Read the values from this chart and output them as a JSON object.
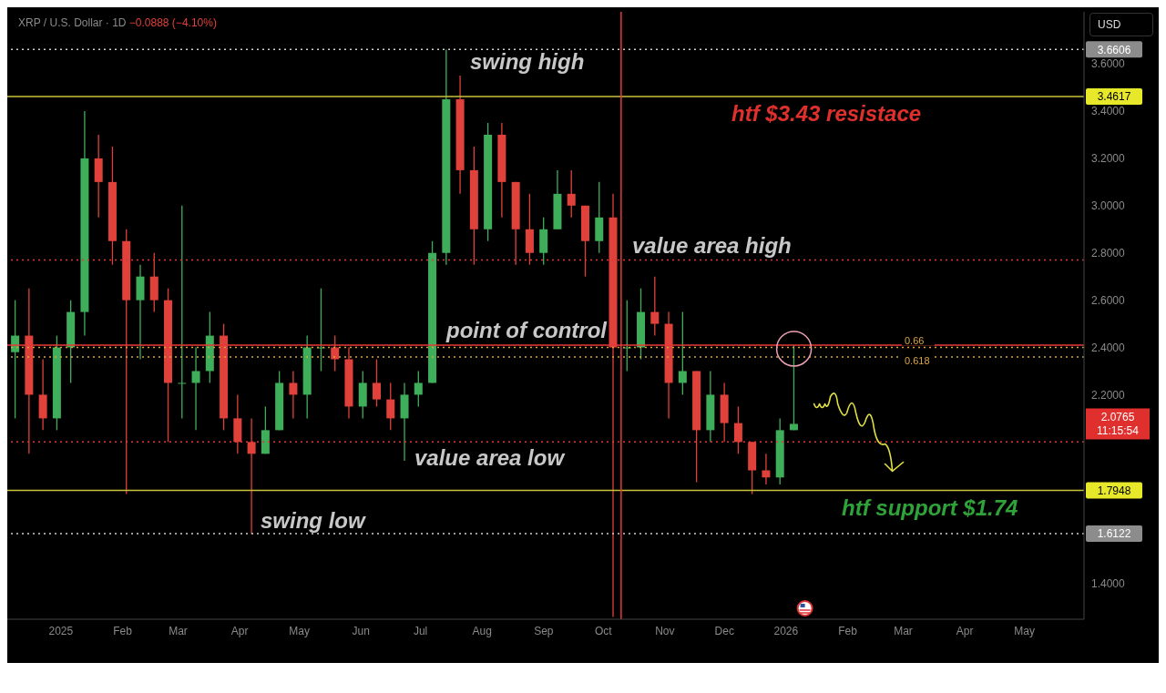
{
  "chart_data": {
    "type": "candlestick",
    "title": "XRP / U.S. Dollar · 1D",
    "subtitle": "−0.0888 (−4.10%)",
    "annotations": [
      "USD",
      "2.0765",
      "11:15:54",
      "0.66",
      "0.618",
      "3.6606",
      "3.4617",
      "1.7948",
      "1.6122"
    ],
    "x": [
      "2024-12-09",
      "2024-12-16",
      "2024-12-23",
      "2024-12-30",
      "2025-01-06",
      "2025-01-13",
      "2025-01-20",
      "2025-01-27",
      "2025-02-03",
      "2025-02-10",
      "2025-02-17",
      "2025-02-24",
      "2025-03-03",
      "2025-03-10",
      "2025-03-17",
      "2025-03-24",
      "2025-03-31",
      "2025-04-07",
      "2025-04-14",
      "2025-04-21",
      "2025-04-28",
      "2025-05-05",
      "2025-05-12",
      "2025-05-19",
      "2025-05-26",
      "2025-06-02",
      "2025-06-09",
      "2025-06-16",
      "2025-06-23",
      "2025-06-30",
      "2025-07-07",
      "2025-07-14",
      "2025-07-21",
      "2025-07-28",
      "2025-08-04",
      "2025-08-11",
      "2025-08-18",
      "2025-08-25",
      "2025-09-01",
      "2025-09-08",
      "2025-09-15",
      "2025-09-22",
      "2025-09-29",
      "2025-10-06",
      "2025-10-13",
      "2025-10-20",
      "2025-10-27",
      "2025-11-03",
      "2025-11-10",
      "2025-11-17",
      "2025-11-24",
      "2025-12-01",
      "2025-12-08",
      "2025-12-15",
      "2025-12-22",
      "2025-12-29",
      "2026-01-05"
    ],
    "ohlc": [
      [
        2.38,
        2.6,
        2.1,
        2.45
      ],
      [
        2.45,
        2.65,
        1.95,
        2.2
      ],
      [
        2.2,
        2.35,
        2.05,
        2.1
      ],
      [
        2.1,
        2.45,
        2.05,
        2.4
      ],
      [
        2.4,
        2.6,
        2.25,
        2.55
      ],
      [
        2.55,
        3.4,
        2.45,
        3.2
      ],
      [
        3.2,
        3.3,
        2.95,
        3.1
      ],
      [
        3.1,
        3.25,
        2.75,
        2.85
      ],
      [
        2.85,
        2.9,
        1.78,
        2.6
      ],
      [
        2.6,
        2.75,
        2.35,
        2.7
      ],
      [
        2.7,
        2.8,
        2.55,
        2.6
      ],
      [
        2.6,
        2.65,
        2.0,
        2.25
      ],
      [
        2.25,
        3.0,
        2.1,
        2.25
      ],
      [
        2.25,
        2.4,
        2.05,
        2.3
      ],
      [
        2.3,
        2.55,
        2.25,
        2.45
      ],
      [
        2.45,
        2.5,
        2.05,
        2.1
      ],
      [
        2.1,
        2.2,
        1.95,
        2.0
      ],
      [
        2.0,
        2.1,
        1.61,
        1.95
      ],
      [
        1.95,
        2.15,
        1.95,
        2.05
      ],
      [
        2.05,
        2.3,
        2.05,
        2.25
      ],
      [
        2.25,
        2.3,
        2.1,
        2.2
      ],
      [
        2.2,
        2.45,
        2.1,
        2.4
      ],
      [
        2.4,
        2.65,
        2.3,
        2.4
      ],
      [
        2.4,
        2.45,
        2.3,
        2.35
      ],
      [
        2.35,
        2.4,
        2.1,
        2.15
      ],
      [
        2.15,
        2.3,
        2.1,
        2.25
      ],
      [
        2.25,
        2.35,
        2.15,
        2.18
      ],
      [
        2.18,
        2.25,
        2.05,
        2.1
      ],
      [
        2.1,
        2.25,
        1.92,
        2.2
      ],
      [
        2.2,
        2.3,
        2.15,
        2.25
      ],
      [
        2.25,
        2.85,
        2.25,
        2.8
      ],
      [
        2.8,
        3.66,
        2.75,
        3.45
      ],
      [
        3.45,
        3.55,
        3.05,
        3.15
      ],
      [
        3.15,
        3.25,
        2.75,
        2.9
      ],
      [
        2.9,
        3.35,
        2.85,
        3.3
      ],
      [
        3.3,
        3.35,
        2.95,
        3.1
      ],
      [
        3.1,
        3.1,
        2.75,
        2.9
      ],
      [
        2.9,
        3.05,
        2.75,
        2.8
      ],
      [
        2.8,
        2.95,
        2.75,
        2.9
      ],
      [
        2.9,
        3.15,
        2.9,
        3.05
      ],
      [
        3.05,
        3.15,
        2.95,
        3.0
      ],
      [
        3.0,
        3.0,
        2.7,
        2.85
      ],
      [
        2.85,
        3.1,
        2.8,
        2.95
      ],
      [
        2.95,
        3.05,
        1.26,
        2.4
      ],
      [
        2.4,
        2.6,
        2.3,
        2.4
      ],
      [
        2.4,
        2.65,
        2.35,
        2.55
      ],
      [
        2.55,
        2.7,
        2.45,
        2.5
      ],
      [
        2.5,
        2.55,
        2.1,
        2.25
      ],
      [
        2.25,
        2.55,
        2.2,
        2.3
      ],
      [
        2.3,
        2.3,
        1.83,
        2.05
      ],
      [
        2.05,
        2.3,
        2.0,
        2.2
      ],
      [
        2.2,
        2.25,
        2.0,
        2.08
      ],
      [
        2.08,
        2.15,
        1.95,
        2.0
      ],
      [
        2.0,
        2.0,
        1.78,
        1.88
      ],
      [
        1.88,
        1.95,
        1.82,
        1.85
      ],
      [
        1.85,
        2.1,
        1.82,
        2.05
      ],
      [
        2.05,
        2.41,
        2.05,
        2.0765
      ]
    ],
    "colors": [
      "#3fae5a",
      "#e0413a",
      "#e0413a",
      "#3fae5a",
      "#3fae5a",
      "#3fae5a",
      "#e0413a",
      "#e0413a",
      "#e0413a",
      "#3fae5a",
      "#e0413a",
      "#e0413a",
      "#3fae5a",
      "#3fae5a",
      "#3fae5a",
      "#e0413a",
      "#e0413a",
      "#e0413a",
      "#3fae5a",
      "#3fae5a",
      "#e0413a",
      "#3fae5a",
      "#3fae5a",
      "#e0413a",
      "#e0413a",
      "#3fae5a",
      "#e0413a",
      "#e0413a",
      "#3fae5a",
      "#3fae5a",
      "#3fae5a",
      "#3fae5a",
      "#e0413a",
      "#e0413a",
      "#3fae5a",
      "#e0413a",
      "#e0413a",
      "#e0413a",
      "#3fae5a",
      "#3fae5a",
      "#e0413a",
      "#e0413a",
      "#3fae5a",
      "#e0413a",
      "#3fae5a",
      "#3fae5a",
      "#e0413a",
      "#e0413a",
      "#3fae5a",
      "#e0413a",
      "#3fae5a",
      "#e0413a",
      "#e0413a",
      "#e0413a",
      "#e0413a",
      "#3fae5a",
      "#3fae5a"
    ],
    "xlim": [
      "2024-12-05",
      "2026-05-31"
    ],
    "xticks": [
      {
        "value": "2025-01-01",
        "label": "2025"
      },
      {
        "value": "2025-02-01",
        "label": "Feb"
      },
      {
        "value": "2025-03-01",
        "label": "Mar"
      },
      {
        "value": "2025-04-01",
        "label": "Apr"
      },
      {
        "value": "2025-05-01",
        "label": "May"
      },
      {
        "value": "2025-06-01",
        "label": "Jun"
      },
      {
        "value": "2025-07-01",
        "label": "Jul"
      },
      {
        "value": "2025-08-01",
        "label": "Aug"
      },
      {
        "value": "2025-09-01",
        "label": "Sep"
      },
      {
        "value": "2025-10-01",
        "label": "Oct"
      },
      {
        "value": "2025-11-01",
        "label": "Nov"
      },
      {
        "value": "2025-12-01",
        "label": "Dec"
      },
      {
        "value": "2026-01-01",
        "label": "2026"
      },
      {
        "value": "2026-02-01",
        "label": "Feb"
      },
      {
        "value": "2026-03-01",
        "label": "Mar"
      },
      {
        "value": "2026-04-01",
        "label": "Apr"
      },
      {
        "value": "2026-05-01",
        "label": "May"
      }
    ],
    "ylim": [
      1.25,
      3.82
    ],
    "yticks": [
      {
        "value": 1.4,
        "label": "1.4000"
      },
      {
        "value": 2.2,
        "label": "2.2000"
      },
      {
        "value": 2.4,
        "label": "2.4000"
      },
      {
        "value": 2.6,
        "label": "2.6000"
      },
      {
        "value": 2.8,
        "label": "2.8000"
      },
      {
        "value": 3.0,
        "label": "3.0000"
      },
      {
        "value": 3.2,
        "label": "3.2000"
      },
      {
        "value": 3.4,
        "label": "3.4000"
      },
      {
        "value": 3.6,
        "label": "3.6000"
      }
    ],
    "ref_lines": [
      {
        "axis": "y",
        "value": 3.6606,
        "label": "swing high",
        "color": "#cfcfcf",
        "line_style": "dotted"
      },
      {
        "axis": "y",
        "value": 3.4617,
        "label": "htf $3.43 resistace",
        "color": "#c9c23a",
        "line_style": "solid"
      },
      {
        "axis": "y",
        "value": 2.77,
        "label": "value area high",
        "color": "#d8383a",
        "line_style": "dotted"
      },
      {
        "axis": "y",
        "value": 2.41,
        "label": "point of control",
        "color": "#e8383a",
        "line_style": "solid"
      },
      {
        "axis": "y",
        "value": 2.4,
        "color": "#d9a441",
        "line_style": "dotted"
      },
      {
        "axis": "y",
        "value": 2.36,
        "color": "#d9a441",
        "line_style": "dotted"
      },
      {
        "axis": "y",
        "value": 2.0,
        "label": "value area low",
        "color": "#d8383a",
        "line_style": "dotted"
      },
      {
        "axis": "y",
        "value": 1.7948,
        "label": "htf support $1.74",
        "color": "#c9c23a",
        "line_style": "solid"
      },
      {
        "axis": "y",
        "value": 1.6122,
        "label": "swing low",
        "color": "#cfcfcf",
        "line_style": "dotted"
      },
      {
        "axis": "x",
        "value": "2025-10-10",
        "color": "#e8383a",
        "line_style": "solid"
      }
    ]
  }
}
